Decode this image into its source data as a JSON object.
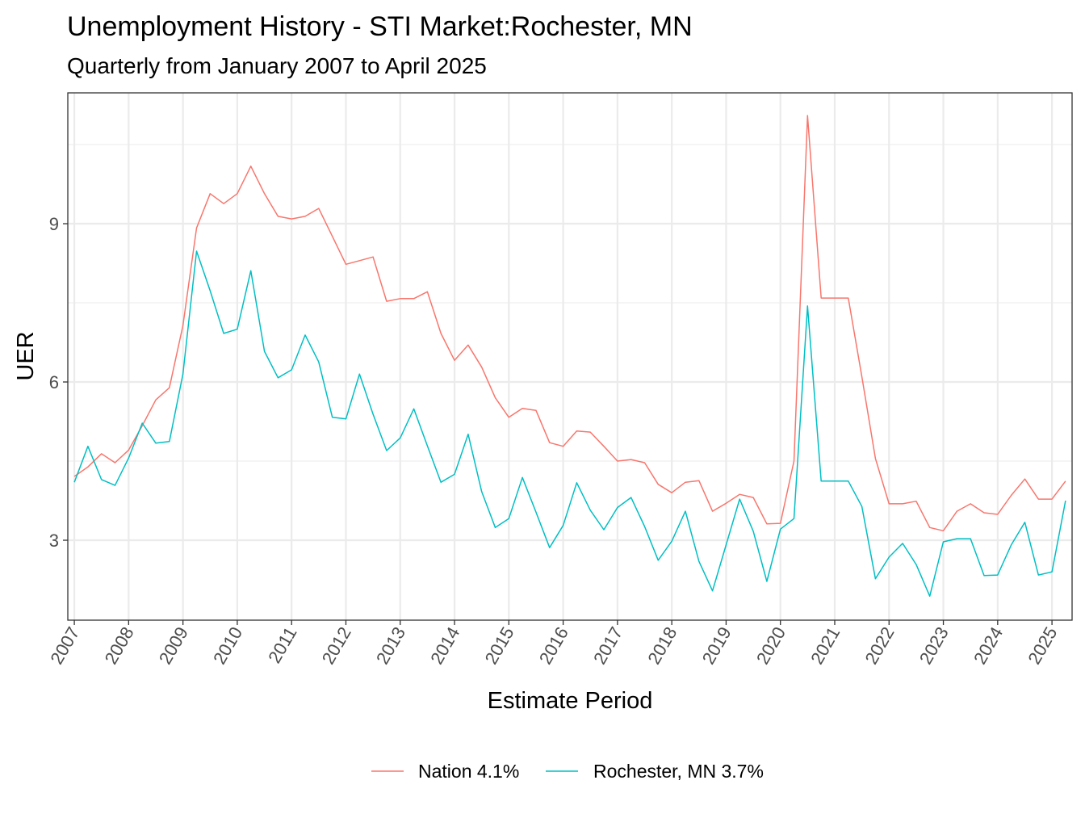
{
  "chart_data": {
    "type": "line",
    "title": "Unemployment History - STI Market:Rochester, MN",
    "subtitle": "Quarterly from January 2007 to April 2025",
    "xlabel": "Estimate Period",
    "ylabel": "UER",
    "x_start": 2007.0,
    "x_step": 0.25,
    "xlim": [
      2006.88,
      2025.37
    ],
    "ylim": [
      1.485,
      11.48
    ],
    "x_ticks": [
      2007,
      2008,
      2009,
      2010,
      2011,
      2012,
      2013,
      2014,
      2015,
      2016,
      2017,
      2018,
      2019,
      2020,
      2021,
      2022,
      2023,
      2024,
      2025
    ],
    "x_tick_labels": [
      "2007",
      "2008",
      "2009",
      "2010",
      "2011",
      "2012",
      "2013",
      "2014",
      "2015",
      "2016",
      "2017",
      "2018",
      "2019",
      "2020",
      "2021",
      "2022",
      "2023",
      "2024",
      "2025"
    ],
    "y_ticks": [
      3,
      6,
      9
    ],
    "y_tick_labels": [
      "3",
      "6",
      "9"
    ],
    "grid": true,
    "legend_position": "bottom",
    "series": [
      {
        "name": "Nation 4.1%",
        "color": "#F8766D",
        "values": [
          4.21,
          4.39,
          4.64,
          4.47,
          4.71,
          5.17,
          5.66,
          5.89,
          7.07,
          8.92,
          9.57,
          9.38,
          9.57,
          10.09,
          9.57,
          9.14,
          9.09,
          9.14,
          9.29,
          8.76,
          8.23,
          8.3,
          8.37,
          7.53,
          7.58,
          7.58,
          7.71,
          6.92,
          6.41,
          6.7,
          6.28,
          5.7,
          5.33,
          5.5,
          5.46,
          4.85,
          4.78,
          5.07,
          5.05,
          4.78,
          4.5,
          4.53,
          4.47,
          4.06,
          3.9,
          4.1,
          4.13,
          3.55,
          3.7,
          3.87,
          3.81,
          3.31,
          3.32,
          4.5,
          11.05,
          7.59,
          7.59,
          7.59,
          6.1,
          4.55,
          3.69,
          3.69,
          3.74,
          3.24,
          3.18,
          3.55,
          3.69,
          3.52,
          3.49,
          3.85,
          4.16,
          3.78,
          3.78,
          4.12
        ]
      },
      {
        "name": "Rochester, MN 3.7%",
        "color": "#00BFC4",
        "values": [
          4.1,
          4.78,
          4.15,
          4.04,
          4.56,
          5.22,
          4.84,
          4.87,
          6.15,
          8.48,
          7.73,
          6.92,
          7.0,
          8.11,
          6.58,
          6.08,
          6.23,
          6.89,
          6.38,
          5.33,
          5.3,
          6.15,
          5.39,
          4.7,
          4.94,
          5.49,
          4.79,
          4.1,
          4.25,
          5.01,
          3.92,
          3.24,
          3.41,
          4.19,
          3.53,
          2.86,
          3.28,
          4.09,
          3.57,
          3.2,
          3.62,
          3.81,
          3.26,
          2.62,
          2.98,
          3.55,
          2.6,
          2.04,
          2.91,
          3.78,
          3.17,
          2.22,
          3.21,
          3.41,
          7.44,
          4.12,
          4.12,
          4.12,
          3.64,
          2.27,
          2.68,
          2.94,
          2.54,
          1.94,
          2.97,
          3.03,
          3.03,
          2.33,
          2.34,
          2.91,
          3.34,
          2.34,
          2.4,
          3.75
        ]
      }
    ]
  }
}
